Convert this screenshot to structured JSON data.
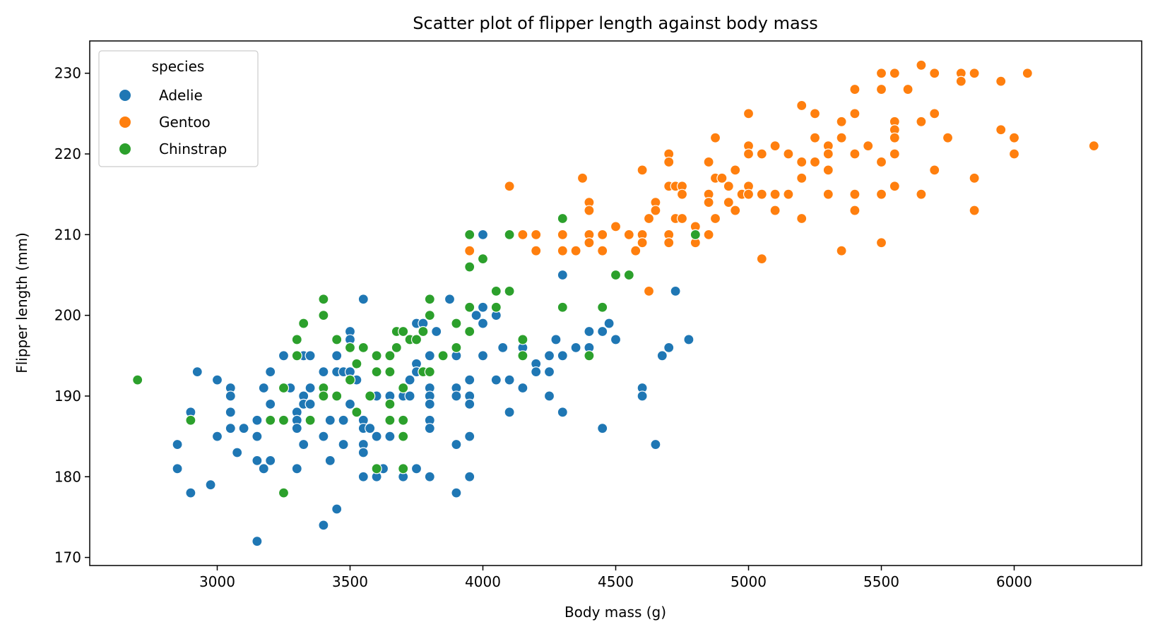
{
  "chart_data": {
    "type": "scatter",
    "title": "Scatter plot of flipper length against body mass",
    "xlabel": "Body mass (g)",
    "ylabel": "Flipper length (mm)",
    "xlim": [
      2520,
      6480
    ],
    "ylim": [
      169,
      234
    ],
    "xticks": [
      3000,
      3500,
      4000,
      4500,
      5000,
      5500,
      6000
    ],
    "yticks": [
      170,
      180,
      190,
      200,
      210,
      220,
      230
    ],
    "grid": false,
    "legend": {
      "title": "species",
      "position": "top-left"
    },
    "series": [
      {
        "name": "Adelie",
        "color": "#1f77b4",
        "points": [
          [
            2850,
            184
          ],
          [
            2850,
            181
          ],
          [
            2900,
            188
          ],
          [
            2900,
            178
          ],
          [
            2925,
            193
          ],
          [
            2975,
            179
          ],
          [
            3000,
            192
          ],
          [
            3000,
            185
          ],
          [
            3050,
            191
          ],
          [
            3050,
            190
          ],
          [
            3050,
            188
          ],
          [
            3050,
            186
          ],
          [
            3075,
            183
          ],
          [
            3100,
            186
          ],
          [
            3150,
            187
          ],
          [
            3150,
            185
          ],
          [
            3150,
            182
          ],
          [
            3150,
            172
          ],
          [
            3175,
            191
          ],
          [
            3175,
            181
          ],
          [
            3200,
            193
          ],
          [
            3200,
            189
          ],
          [
            3200,
            182
          ],
          [
            3250,
            195
          ],
          [
            3275,
            191
          ],
          [
            3300,
            188
          ],
          [
            3300,
            187
          ],
          [
            3300,
            186
          ],
          [
            3300,
            181
          ],
          [
            3325,
            195
          ],
          [
            3325,
            190
          ],
          [
            3325,
            189
          ],
          [
            3325,
            184
          ],
          [
            3350,
            195
          ],
          [
            3350,
            191
          ],
          [
            3350,
            189
          ],
          [
            3400,
            193
          ],
          [
            3400,
            185
          ],
          [
            3400,
            174
          ],
          [
            3425,
            187
          ],
          [
            3425,
            182
          ],
          [
            3450,
            195
          ],
          [
            3450,
            193
          ],
          [
            3450,
            176
          ],
          [
            3475,
            193
          ],
          [
            3475,
            187
          ],
          [
            3475,
            184
          ],
          [
            3500,
            198
          ],
          [
            3500,
            197
          ],
          [
            3500,
            196
          ],
          [
            3500,
            193
          ],
          [
            3500,
            189
          ],
          [
            3525,
            192
          ],
          [
            3550,
            202
          ],
          [
            3550,
            187
          ],
          [
            3550,
            186
          ],
          [
            3550,
            184
          ],
          [
            3550,
            183
          ],
          [
            3550,
            180
          ],
          [
            3575,
            186
          ],
          [
            3600,
            190
          ],
          [
            3600,
            185
          ],
          [
            3600,
            180
          ],
          [
            3625,
            181
          ],
          [
            3650,
            190
          ],
          [
            3650,
            189
          ],
          [
            3650,
            185
          ],
          [
            3675,
            198
          ],
          [
            3700,
            190
          ],
          [
            3700,
            185
          ],
          [
            3700,
            180
          ],
          [
            3725,
            192
          ],
          [
            3725,
            190
          ],
          [
            3750,
            199
          ],
          [
            3750,
            194
          ],
          [
            3750,
            193
          ],
          [
            3750,
            181
          ],
          [
            3775,
            199
          ],
          [
            3775,
            193
          ],
          [
            3800,
            195
          ],
          [
            3800,
            191
          ],
          [
            3800,
            190
          ],
          [
            3800,
            189
          ],
          [
            3800,
            187
          ],
          [
            3800,
            186
          ],
          [
            3800,
            180
          ],
          [
            3825,
            198
          ],
          [
            3875,
            202
          ],
          [
            3900,
            195
          ],
          [
            3900,
            191
          ],
          [
            3900,
            190
          ],
          [
            3900,
            184
          ],
          [
            3900,
            178
          ],
          [
            3950,
            192
          ],
          [
            3950,
            190
          ],
          [
            3950,
            189
          ],
          [
            3950,
            185
          ],
          [
            3950,
            180
          ],
          [
            3975,
            200
          ],
          [
            4000,
            210
          ],
          [
            4000,
            201
          ],
          [
            4000,
            199
          ],
          [
            4000,
            195
          ],
          [
            4050,
            200
          ],
          [
            4050,
            192
          ],
          [
            4075,
            196
          ],
          [
            4100,
            192
          ],
          [
            4100,
            188
          ],
          [
            4150,
            196
          ],
          [
            4150,
            191
          ],
          [
            4200,
            194
          ],
          [
            4200,
            193
          ],
          [
            4250,
            195
          ],
          [
            4250,
            193
          ],
          [
            4250,
            190
          ],
          [
            4275,
            197
          ],
          [
            4300,
            205
          ],
          [
            4300,
            195
          ],
          [
            4300,
            188
          ],
          [
            4350,
            196
          ],
          [
            4400,
            198
          ],
          [
            4400,
            196
          ],
          [
            4400,
            195
          ],
          [
            4450,
            198
          ],
          [
            4450,
            186
          ],
          [
            4475,
            199
          ],
          [
            4500,
            197
          ],
          [
            4600,
            191
          ],
          [
            4600,
            190
          ],
          [
            4650,
            184
          ],
          [
            4675,
            195
          ],
          [
            4700,
            196
          ],
          [
            4725,
            203
          ],
          [
            4775,
            197
          ]
        ]
      },
      {
        "name": "Gentoo",
        "color": "#ff7f0e",
        "points": [
          [
            3950,
            208
          ],
          [
            4100,
            216
          ],
          [
            4150,
            210
          ],
          [
            4200,
            210
          ],
          [
            4200,
            208
          ],
          [
            4300,
            210
          ],
          [
            4300,
            208
          ],
          [
            4350,
            208
          ],
          [
            4375,
            217
          ],
          [
            4400,
            214
          ],
          [
            4400,
            213
          ],
          [
            4400,
            210
          ],
          [
            4400,
            209
          ],
          [
            4450,
            210
          ],
          [
            4450,
            208
          ],
          [
            4500,
            211
          ],
          [
            4550,
            210
          ],
          [
            4575,
            208
          ],
          [
            4600,
            218
          ],
          [
            4600,
            210
          ],
          [
            4600,
            209
          ],
          [
            4625,
            203
          ],
          [
            4625,
            212
          ],
          [
            4650,
            214
          ],
          [
            4650,
            213
          ],
          [
            4700,
            220
          ],
          [
            4700,
            219
          ],
          [
            4700,
            216
          ],
          [
            4700,
            210
          ],
          [
            4700,
            209
          ],
          [
            4725,
            216
          ],
          [
            4725,
            212
          ],
          [
            4750,
            216
          ],
          [
            4750,
            215
          ],
          [
            4750,
            212
          ],
          [
            4800,
            211
          ],
          [
            4800,
            210
          ],
          [
            4800,
            209
          ],
          [
            4850,
            219
          ],
          [
            4850,
            215
          ],
          [
            4850,
            214
          ],
          [
            4850,
            210
          ],
          [
            4875,
            222
          ],
          [
            4875,
            217
          ],
          [
            4875,
            212
          ],
          [
            4900,
            217
          ],
          [
            4925,
            216
          ],
          [
            4925,
            214
          ],
          [
            4950,
            218
          ],
          [
            4950,
            213
          ],
          [
            4975,
            215
          ],
          [
            5000,
            225
          ],
          [
            5000,
            221
          ],
          [
            5000,
            220
          ],
          [
            5000,
            216
          ],
          [
            5000,
            215
          ],
          [
            5050,
            220
          ],
          [
            5050,
            215
          ],
          [
            5050,
            207
          ],
          [
            5100,
            221
          ],
          [
            5100,
            215
          ],
          [
            5100,
            213
          ],
          [
            5150,
            220
          ],
          [
            5150,
            215
          ],
          [
            5200,
            226
          ],
          [
            5200,
            219
          ],
          [
            5200,
            217
          ],
          [
            5200,
            212
          ],
          [
            5250,
            225
          ],
          [
            5250,
            222
          ],
          [
            5250,
            219
          ],
          [
            5300,
            221
          ],
          [
            5300,
            220
          ],
          [
            5300,
            218
          ],
          [
            5300,
            215
          ],
          [
            5350,
            224
          ],
          [
            5350,
            222
          ],
          [
            5350,
            208
          ],
          [
            5400,
            228
          ],
          [
            5400,
            225
          ],
          [
            5400,
            220
          ],
          [
            5400,
            215
          ],
          [
            5400,
            213
          ],
          [
            5450,
            221
          ],
          [
            5500,
            230
          ],
          [
            5500,
            228
          ],
          [
            5500,
            219
          ],
          [
            5500,
            215
          ],
          [
            5500,
            209
          ],
          [
            5550,
            230
          ],
          [
            5550,
            224
          ],
          [
            5550,
            223
          ],
          [
            5550,
            222
          ],
          [
            5550,
            220
          ],
          [
            5550,
            216
          ],
          [
            5600,
            228
          ],
          [
            5650,
            231
          ],
          [
            5650,
            224
          ],
          [
            5650,
            215
          ],
          [
            5700,
            230
          ],
          [
            5700,
            225
          ],
          [
            5700,
            218
          ],
          [
            5750,
            222
          ],
          [
            5800,
            230
          ],
          [
            5800,
            229
          ],
          [
            5850,
            230
          ],
          [
            5850,
            217
          ],
          [
            5850,
            213
          ],
          [
            5950,
            229
          ],
          [
            5950,
            223
          ],
          [
            6000,
            222
          ],
          [
            6000,
            220
          ],
          [
            6050,
            230
          ],
          [
            6300,
            221
          ]
        ]
      },
      {
        "name": "Chinstrap",
        "color": "#2ca02c",
        "points": [
          [
            2700,
            192
          ],
          [
            2900,
            187
          ],
          [
            3200,
            187
          ],
          [
            3250,
            191
          ],
          [
            3250,
            187
          ],
          [
            3250,
            178
          ],
          [
            3300,
            197
          ],
          [
            3300,
            195
          ],
          [
            3325,
            199
          ],
          [
            3350,
            187
          ],
          [
            3400,
            202
          ],
          [
            3400,
            200
          ],
          [
            3400,
            191
          ],
          [
            3400,
            190
          ],
          [
            3450,
            197
          ],
          [
            3450,
            190
          ],
          [
            3500,
            196
          ],
          [
            3500,
            192
          ],
          [
            3525,
            194
          ],
          [
            3525,
            188
          ],
          [
            3550,
            196
          ],
          [
            3575,
            190
          ],
          [
            3600,
            195
          ],
          [
            3600,
            193
          ],
          [
            3600,
            181
          ],
          [
            3650,
            195
          ],
          [
            3650,
            193
          ],
          [
            3650,
            189
          ],
          [
            3650,
            187
          ],
          [
            3675,
            198
          ],
          [
            3675,
            196
          ],
          [
            3700,
            198
          ],
          [
            3700,
            191
          ],
          [
            3700,
            187
          ],
          [
            3700,
            185
          ],
          [
            3700,
            181
          ],
          [
            3725,
            197
          ],
          [
            3750,
            197
          ],
          [
            3775,
            198
          ],
          [
            3775,
            193
          ],
          [
            3800,
            202
          ],
          [
            3800,
            200
          ],
          [
            3800,
            193
          ],
          [
            3850,
            195
          ],
          [
            3900,
            199
          ],
          [
            3900,
            196
          ],
          [
            3950,
            210
          ],
          [
            3950,
            206
          ],
          [
            3950,
            201
          ],
          [
            3950,
            198
          ],
          [
            4000,
            207
          ],
          [
            4050,
            203
          ],
          [
            4050,
            201
          ],
          [
            4100,
            210
          ],
          [
            4100,
            203
          ],
          [
            4150,
            197
          ],
          [
            4150,
            195
          ],
          [
            4300,
            212
          ],
          [
            4300,
            201
          ],
          [
            4400,
            195
          ],
          [
            4450,
            201
          ],
          [
            4500,
            205
          ],
          [
            4550,
            205
          ],
          [
            4800,
            210
          ]
        ]
      }
    ]
  }
}
